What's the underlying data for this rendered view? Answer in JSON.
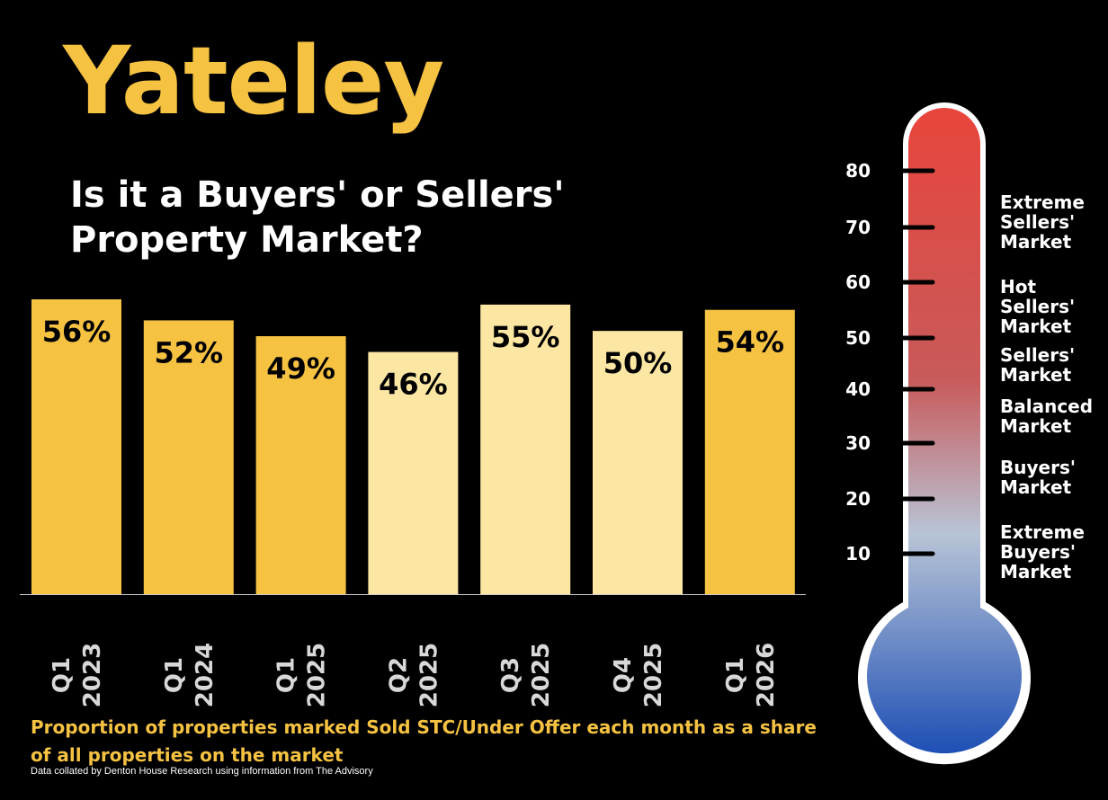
{
  "header": {
    "title": "Yateley",
    "subtitle": "Is it a Buyers' or Sellers' Property Market?"
  },
  "footer": {
    "note": "Proportion of properties marked Sold STC/Under Offer each month as a share of all properties on the market",
    "source": "Data collated by Denton House Research using information from The Advisory"
  },
  "colors": {
    "title": "#f5c242",
    "bar_dark": "#f5c242",
    "bar_light": "#fce6a3",
    "bar_label": "#000000",
    "axis_label": "#d8d8d8",
    "baseline": "#cccccc",
    "footnote": "#f5c242",
    "thermo_hot": "#e8453c",
    "thermo_mid": "#c85a5a",
    "thermo_cool": "#b8c4d6",
    "thermo_cold": "#1e4fb5"
  },
  "chart_data": {
    "type": "bar",
    "categories": [
      "Q1 2023",
      "Q1 2024",
      "Q1 2025",
      "Q2 2025",
      "Q3 2025",
      "Q4 2025",
      "Q1 2026"
    ],
    "category_lines": [
      [
        "Q1",
        "2023"
      ],
      [
        "Q1",
        "2024"
      ],
      [
        "Q1",
        "2025"
      ],
      [
        "Q2",
        "2025"
      ],
      [
        "Q3",
        "2025"
      ],
      [
        "Q4",
        "2025"
      ],
      [
        "Q1",
        "2026"
      ]
    ],
    "values": [
      56,
      52,
      49,
      46,
      55,
      50,
      54
    ],
    "data_labels": [
      "56%",
      "52%",
      "49%",
      "46%",
      "55%",
      "50%",
      "54%"
    ],
    "shades": [
      "dark",
      "dark",
      "dark",
      "light",
      "light",
      "light",
      "dark"
    ],
    "ylim": [
      0,
      56
    ],
    "grid": false,
    "legend": "none"
  },
  "thermometer": {
    "scale": [
      "80",
      "70",
      "60",
      "50",
      "40",
      "30",
      "20",
      "10"
    ],
    "zones": [
      "Extreme\nSellers'\nMarket",
      "Hot\nSellers'\nMarket",
      "Sellers'\nMarket",
      "Balanced\nMarket",
      "Buyers'\nMarket",
      "Extreme\n Buyers'\nMarket"
    ]
  }
}
